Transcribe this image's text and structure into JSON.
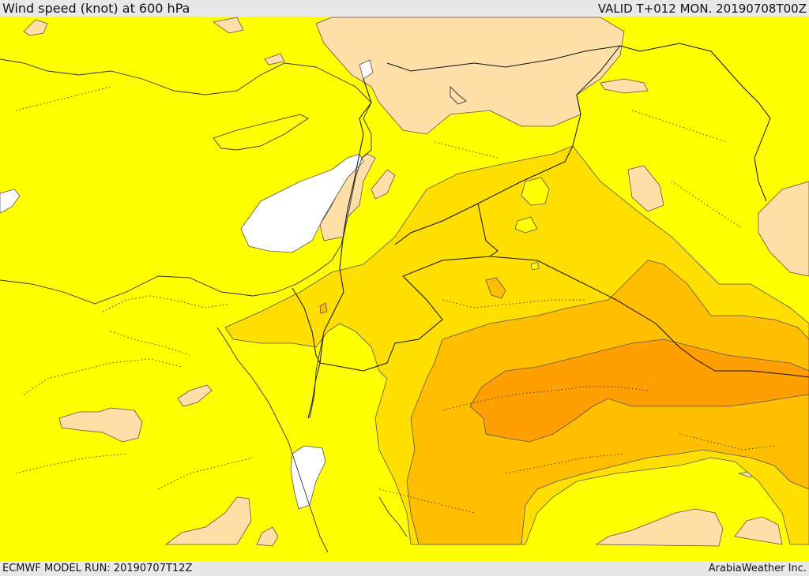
{
  "header": {
    "title": "Wind speed (knot) at 600 hPa",
    "valid": "VALID T+012 MON. 20190708T00Z"
  },
  "footer": {
    "model_run": "ECMWF MODEL RUN: 20190707T12Z",
    "credit": "ArabiaWeather Inc."
  },
  "colors": {
    "band_0_10": "#ffffff",
    "band_10_20": "#ffdfa8",
    "band_20_30": "#ffff00",
    "band_30_40": "#ffdf00",
    "band_40_50": "#ffbf00",
    "band_50_60": "#ff9f00"
  },
  "map": {
    "region": "Eastern Mediterranean / Levant / Arabian Peninsula",
    "borders": "solid",
    "admin_boundaries": "dotted"
  }
}
